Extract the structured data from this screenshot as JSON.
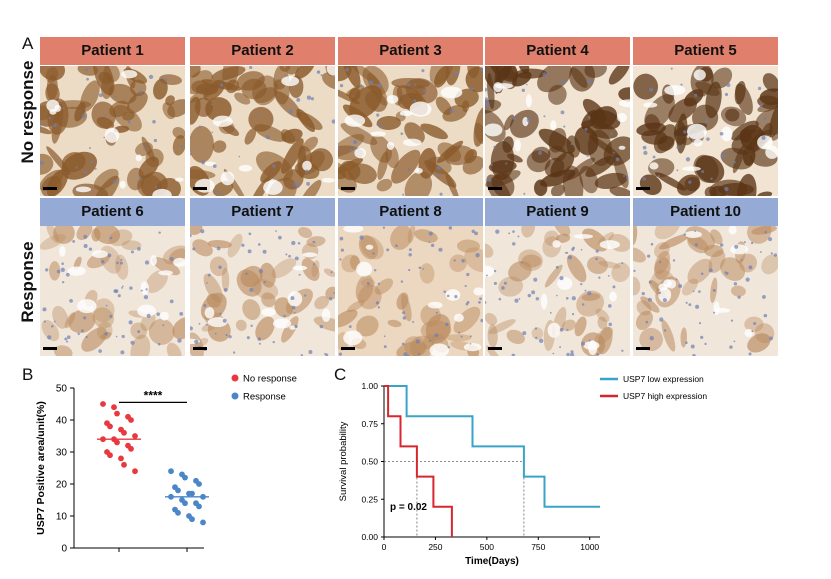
{
  "panel_a": {
    "letter": "A",
    "rows": [
      {
        "label": "No response",
        "group": "nr",
        "tone": "dark",
        "patients": [
          "Patient 1",
          "Patient 2",
          "Patient 3",
          "Patient 4",
          "Patient 5"
        ]
      },
      {
        "label": "Response",
        "group": "r",
        "tone": "light",
        "patients": [
          "Patient 6",
          "Patient 7",
          "Patient 8",
          "Patient 9",
          "Patient 10"
        ]
      }
    ],
    "colors": {
      "no_response_header": "#e0806c",
      "response_header": "#95aad5",
      "stain_brown": "#8a5a2b",
      "hematoxylin_blue": "#6d7fb3"
    }
  },
  "panel_b": {
    "letter": "B",
    "chart_data": {
      "type": "scatter",
      "ylabel": "USP7 Positive area/unit(%)",
      "ylim": [
        0,
        50
      ],
      "yticks": [
        0,
        10,
        20,
        30,
        40,
        50
      ],
      "significance": "****",
      "legend": [
        "No response",
        "Response"
      ],
      "series": [
        {
          "name": "No response",
          "color": "#e8393f",
          "mean": 34,
          "values": [
            45,
            44,
            42,
            41,
            40,
            39,
            38,
            37,
            36,
            35,
            34,
            34,
            33,
            32,
            31,
            30,
            29,
            28,
            26,
            24
          ]
        },
        {
          "name": "Response",
          "color": "#4a86c8",
          "mean": 16,
          "values": [
            24,
            23,
            22,
            21,
            20,
            19,
            18,
            17,
            17,
            16,
            16,
            15,
            14,
            14,
            13,
            12,
            11,
            10,
            9,
            8
          ]
        }
      ]
    }
  },
  "panel_c": {
    "letter": "C",
    "chart_data": {
      "type": "line",
      "subtype": "step",
      "xlabel": "Time(Days)",
      "ylabel": "Survival probability",
      "xlim": [
        0,
        1050
      ],
      "ylim": [
        0,
        1.0
      ],
      "xticks": [
        0,
        250,
        500,
        750,
        1000
      ],
      "yticks": [
        "0.00",
        "0.25",
        "0.50",
        "0.75",
        "1.00"
      ],
      "pvalue": "p = 0.02",
      "median_line": 0.5,
      "series": [
        {
          "name": "USP7 low expression",
          "color": "#3aa3c8",
          "x": [
            0,
            110,
            110,
            430,
            430,
            680,
            680,
            780,
            780,
            1050
          ],
          "y": [
            1.0,
            1.0,
            0.8,
            0.8,
            0.6,
            0.6,
            0.4,
            0.4,
            0.2,
            0.2
          ]
        },
        {
          "name": "USP7 high expression",
          "color": "#d8262e",
          "x": [
            0,
            20,
            20,
            80,
            80,
            160,
            160,
            240,
            240,
            330,
            330
          ],
          "y": [
            1.0,
            1.0,
            0.8,
            0.8,
            0.6,
            0.6,
            0.4,
            0.4,
            0.2,
            0.2,
            0.0
          ]
        }
      ],
      "median_drops_x": [
        160,
        680
      ]
    }
  }
}
